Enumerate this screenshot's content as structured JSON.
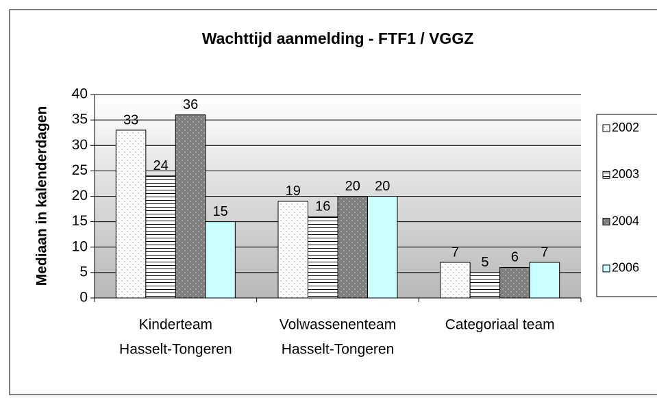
{
  "chart_data": {
    "type": "bar",
    "title": "Wachttijd aanmelding - FTF1 / VGGZ",
    "y_label": "Mediaan in kalenderdagen",
    "categories": [
      [
        "Kinderteam",
        "Hasselt-Tongeren"
      ],
      [
        "Volwassenenteam",
        "Hasselt-Tongeren"
      ],
      [
        "Categoriaal team"
      ]
    ],
    "series": [
      {
        "name": "2002",
        "color": "#ffffff",
        "pattern": "dots",
        "values": [
          33,
          19,
          7
        ]
      },
      {
        "name": "2003",
        "color": "#ffffff",
        "pattern": "hlines",
        "values": [
          24,
          16,
          5
        ]
      },
      {
        "name": "2004",
        "color": "#808080",
        "pattern": "dots",
        "values": [
          36,
          20,
          6
        ]
      },
      {
        "name": "2006",
        "color": "#ccffff",
        "values": [
          15,
          20,
          7
        ]
      }
    ],
    "ylim": [
      0,
      40
    ],
    "yticks": [
      0,
      5,
      10,
      15,
      20,
      25,
      30,
      35,
      40
    ],
    "grid": true,
    "legend": "right"
  }
}
